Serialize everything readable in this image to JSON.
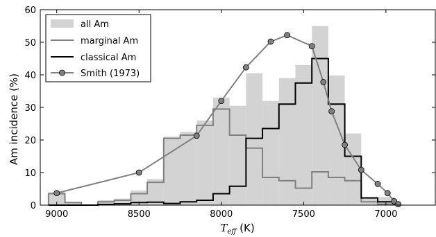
{
  "chart_data": {
    "type": "bar",
    "xlabel_main": "T",
    "xlabel_sub": "eff",
    "xlabel_unit": " (K)",
    "ylabel": "Am incidence (%)",
    "xlim": [
      9100,
      6700
    ],
    "ylim": [
      0,
      60
    ],
    "x_reversed": true,
    "x_ticks": [
      9000,
      8500,
      8000,
      7500,
      7000
    ],
    "y_ticks": [
      0,
      10,
      20,
      30,
      40,
      50,
      60
    ],
    "legend": {
      "placement": "top-left",
      "entries": [
        "all Am",
        "marginal Am",
        "classical Am",
        "Smith (1973)"
      ]
    },
    "colors": {
      "all_am": "#d3d3d3",
      "marginal_am": "#808080",
      "classical_am": "#000000",
      "smith": "#808080",
      "smith_marker": "#808080"
    },
    "bin_edges": [
      9050,
      8950,
      8850,
      8750,
      8650,
      8550,
      8450,
      8350,
      8250,
      8150,
      8050,
      7950,
      7850,
      7750,
      7650,
      7550,
      7450,
      7350,
      7250,
      7150,
      7050,
      6950
    ],
    "series": [
      {
        "name": "all Am",
        "style": "filled",
        "values": [
          4,
          0.8,
          0,
          1.5,
          2,
          4.5,
          8,
          21,
          22.5,
          26,
          33,
          30.5,
          40.5,
          32,
          39,
          43,
          55,
          39.8,
          22,
          2.5,
          2.5
        ]
      },
      {
        "name": "marginal Am",
        "style": "step",
        "values": [
          3.5,
          0.8,
          0,
          1,
          1.5,
          3.5,
          7,
          20.5,
          21.5,
          24.5,
          29.5,
          21.5,
          17.5,
          8.5,
          7.5,
          5.2,
          10.2,
          8.5,
          7.5,
          1,
          0.3
        ]
      },
      {
        "name": "classical Am",
        "style": "step",
        "values": [
          0,
          0,
          0,
          0.2,
          0.4,
          0.8,
          0.9,
          0.5,
          1,
          1.5,
          3.5,
          5.8,
          20.5,
          23.5,
          31,
          37.5,
          45,
          31,
          15,
          2.2,
          1
        ]
      },
      {
        "name": "Smith (1973)",
        "style": "line-markers",
        "x": [
          9000,
          8500,
          8150,
          8000,
          7850,
          7700,
          7600,
          7450,
          7380,
          7330,
          7250,
          7150,
          7050,
          6990,
          6950,
          6925
        ],
        "values": [
          3.7,
          10,
          21.3,
          32,
          42.3,
          50.2,
          52.2,
          48.8,
          37.8,
          28.8,
          18.5,
          10.8,
          6.5,
          3.7,
          1.2,
          0.3
        ]
      }
    ]
  }
}
